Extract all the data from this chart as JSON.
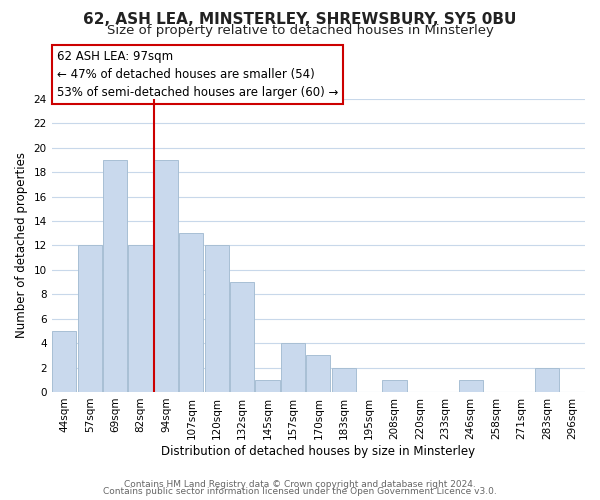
{
  "title": "62, ASH LEA, MINSTERLEY, SHREWSBURY, SY5 0BU",
  "subtitle": "Size of property relative to detached houses in Minsterley",
  "xlabel": "Distribution of detached houses by size in Minsterley",
  "ylabel": "Number of detached properties",
  "bin_labels": [
    "44sqm",
    "57sqm",
    "69sqm",
    "82sqm",
    "94sqm",
    "107sqm",
    "120sqm",
    "132sqm",
    "145sqm",
    "157sqm",
    "170sqm",
    "183sqm",
    "195sqm",
    "208sqm",
    "220sqm",
    "233sqm",
    "246sqm",
    "258sqm",
    "271sqm",
    "283sqm",
    "296sqm"
  ],
  "bar_heights": [
    5,
    12,
    19,
    12,
    19,
    13,
    12,
    9,
    1,
    4,
    3,
    2,
    0,
    1,
    0,
    0,
    1,
    0,
    0,
    2,
    0
  ],
  "highlight_bin": 4,
  "bar_color": "#c9d9ed",
  "highlight_color": "#c9d9ed",
  "highlight_edge_color": "#cc0000",
  "normal_edge_color": "#a8bfd4",
  "annotation_line1": "62 ASH LEA: 97sqm",
  "annotation_line2": "← 47% of detached houses are smaller (54)",
  "annotation_line3": "53% of semi-detached houses are larger (60) →",
  "annotation_box_edge_color": "#cc0000",
  "ylim": [
    0,
    24
  ],
  "yticks": [
    0,
    2,
    4,
    6,
    8,
    10,
    12,
    14,
    16,
    18,
    20,
    22,
    24
  ],
  "footer_line1": "Contains HM Land Registry data © Crown copyright and database right 2024.",
  "footer_line2": "Contains public sector information licensed under the Open Government Licence v3.0.",
  "background_color": "#ffffff",
  "grid_color": "#c8d8ea",
  "title_fontsize": 11,
  "subtitle_fontsize": 9.5,
  "axis_label_fontsize": 8.5,
  "tick_fontsize": 7.5,
  "footer_fontsize": 6.5,
  "annotation_fontsize": 8.5
}
